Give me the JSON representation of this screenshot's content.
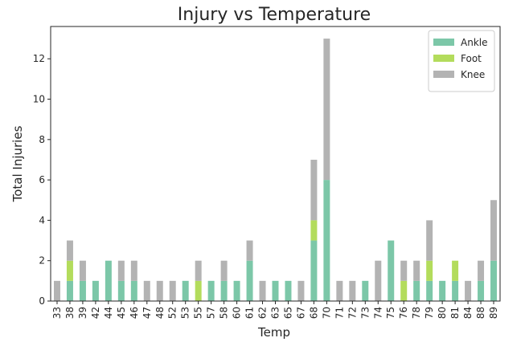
{
  "chart_data": {
    "type": "bar",
    "stacked": true,
    "title": "Injury vs Temperature",
    "xlabel": "Temp",
    "ylabel": "Total Injuries",
    "ylim": [
      0,
      13.6
    ],
    "yticks": [
      0,
      2,
      4,
      6,
      8,
      10,
      12
    ],
    "grid": false,
    "legend_position": "top-right",
    "categories": [
      "33",
      "38",
      "39",
      "42",
      "44",
      "45",
      "46",
      "47",
      "48",
      "52",
      "53",
      "55",
      "57",
      "58",
      "60",
      "61",
      "62",
      "63",
      "65",
      "67",
      "68",
      "70",
      "71",
      "72",
      "73",
      "74",
      "75",
      "76",
      "78",
      "79",
      "80",
      "81",
      "84",
      "88",
      "89"
    ],
    "series": [
      {
        "name": "Ankle",
        "color": "#7cc7a8",
        "values": [
          0,
          1,
          1,
          1,
          2,
          1,
          1,
          0,
          0,
          0,
          1,
          0,
          1,
          1,
          1,
          2,
          0,
          1,
          1,
          0,
          3,
          6,
          0,
          0,
          1,
          0,
          3,
          0,
          1,
          1,
          1,
          1,
          0,
          1,
          2
        ]
      },
      {
        "name": "Foot",
        "color": "#b3dc5c",
        "values": [
          0,
          1,
          0,
          0,
          0,
          0,
          0,
          0,
          0,
          0,
          0,
          1,
          0,
          0,
          0,
          0,
          0,
          0,
          0,
          0,
          1,
          0,
          0,
          0,
          0,
          0,
          0,
          1,
          0,
          1,
          0,
          1,
          0,
          0,
          0
        ]
      },
      {
        "name": "Knee",
        "color": "#b3b3b3",
        "values": [
          1,
          1,
          1,
          0,
          0,
          1,
          1,
          1,
          1,
          1,
          0,
          1,
          0,
          1,
          0,
          1,
          1,
          0,
          0,
          1,
          3,
          7,
          1,
          1,
          0,
          2,
          0,
          1,
          1,
          2,
          0,
          0,
          1,
          1,
          3
        ]
      }
    ]
  }
}
